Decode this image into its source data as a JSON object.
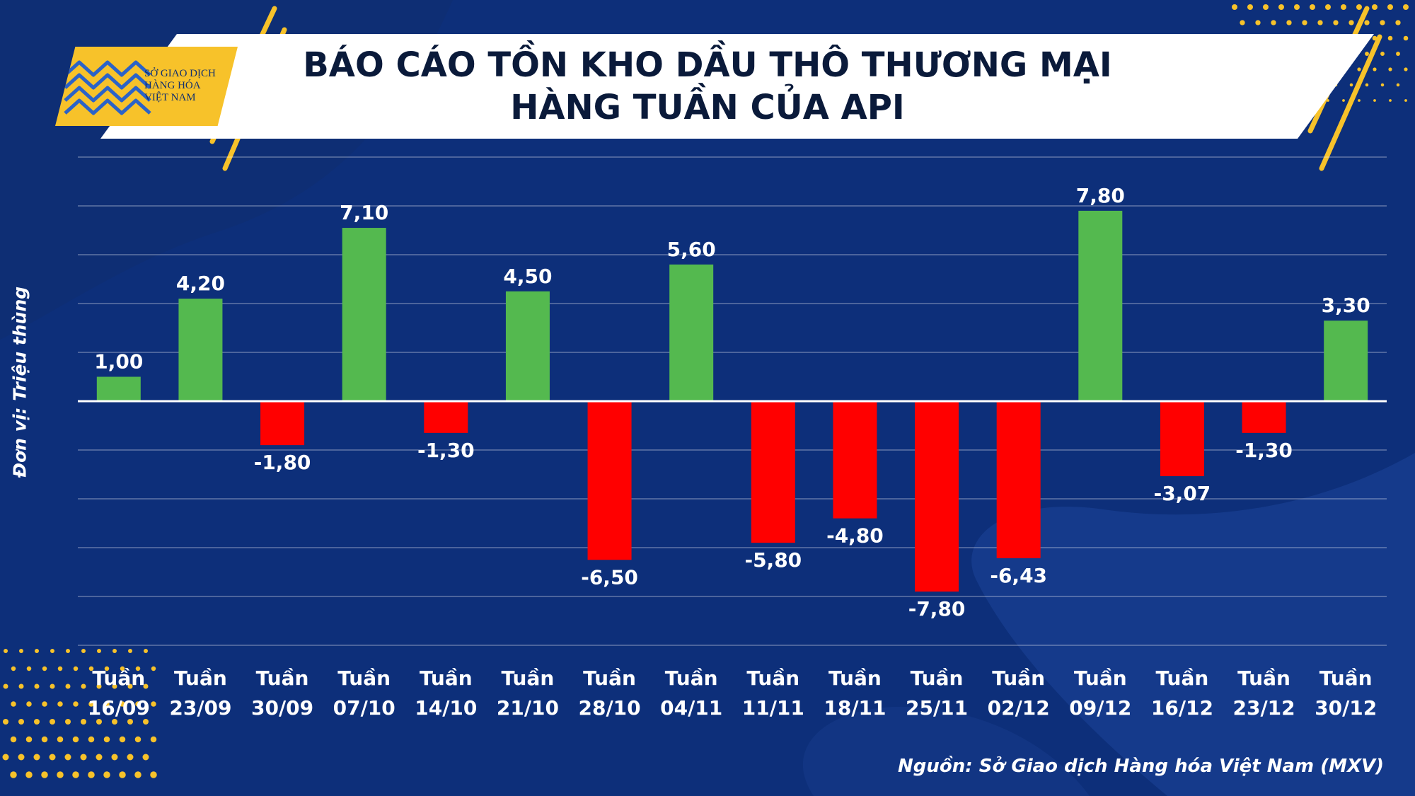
{
  "logo": {
    "icon": "mxv-logo-icon",
    "lines": [
      "SỞ GIAO DỊCH",
      "HÀNG HÓA",
      "VIỆT NAM"
    ]
  },
  "title": {
    "line1": "BÁO CÁO TỒN KHO DẦU THÔ THƯƠNG MẠI",
    "line2": "HÀNG TUẦN CỦA API"
  },
  "source": "Nguồn: Sở Giao dịch Hàng hóa Việt Nam (MXV)",
  "colors": {
    "background": "#0d2f7a",
    "positive": "#54b94f",
    "negative": "#ff0000",
    "accent": "#f7c22a"
  },
  "chart_data": {
    "type": "bar",
    "title": "BÁO CÁO TỒN KHO DẦU THÔ THƯƠNG MẠI HÀNG TUẦN CỦA API",
    "ylabel": "Đơn vị: Triệu thùng",
    "xlabel": "",
    "categories": [
      [
        "Tuần",
        "16/09"
      ],
      [
        "Tuần",
        "23/09"
      ],
      [
        "Tuần",
        "30/09"
      ],
      [
        "Tuần",
        "07/10"
      ],
      [
        "Tuần",
        "14/10"
      ],
      [
        "Tuần",
        "21/10"
      ],
      [
        "Tuần",
        "28/10"
      ],
      [
        "Tuần",
        "04/11"
      ],
      [
        "Tuần",
        "11/11"
      ],
      [
        "Tuần",
        "18/11"
      ],
      [
        "Tuần",
        "25/11"
      ],
      [
        "Tuần",
        "02/12"
      ],
      [
        "Tuần",
        "09/12"
      ],
      [
        "Tuần",
        "16/12"
      ],
      [
        "Tuần",
        "23/12"
      ],
      [
        "Tuần",
        "30/12"
      ]
    ],
    "values": [
      1.0,
      4.2,
      -1.8,
      7.1,
      -1.3,
      4.5,
      -6.5,
      5.6,
      -5.8,
      -4.8,
      -7.8,
      -6.43,
      7.8,
      -3.07,
      -1.3,
      3.3
    ],
    "data_labels": [
      "1,00",
      "4,20",
      "-1,80",
      "7,10",
      "-1,30",
      "4,50",
      "-6,50",
      "5,60",
      "-5,80",
      "-4,80",
      "-7,80",
      "-6,43",
      "7,80",
      "-3,07",
      "-1,30",
      "3,30"
    ],
    "ylim": [
      -10,
      10
    ],
    "grid": true,
    "legend": "none"
  }
}
